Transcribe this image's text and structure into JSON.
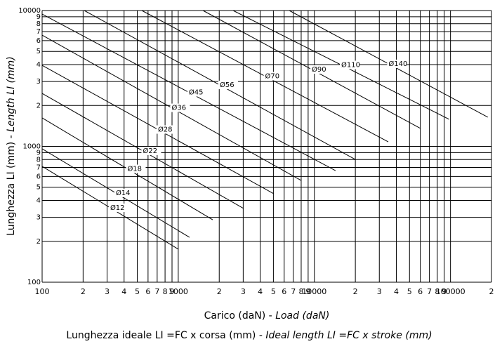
{
  "chart_data": {
    "type": "line",
    "log_x": true,
    "log_y": true,
    "grid": true,
    "x_label": "Carico (daN) - ",
    "x_label_en": "Load (daN)",
    "y_label": "Lunghezza LI (mm) - ",
    "y_label_en": "Length LI (mm)",
    "caption": "Lunghezza ideale LI =FC x corsa (mm) - ",
    "caption_en": "Ideal length LI =FC x stroke (mm)",
    "xlim": [
      100,
      200000
    ],
    "ylim": [
      100,
      10000
    ],
    "xticks": [
      100,
      {
        "value": 200,
        "label": "2"
      },
      {
        "value": 300,
        "label": "3"
      },
      {
        "value": 400,
        "label": "4"
      },
      {
        "value": 500,
        "label": "5"
      },
      {
        "value": 600,
        "label": "6"
      },
      {
        "value": 700,
        "label": "7"
      },
      {
        "value": 800,
        "label": "8"
      },
      {
        "value": 900,
        "label": "9"
      },
      1000,
      {
        "value": 2000,
        "label": "2"
      },
      {
        "value": 3000,
        "label": "3"
      },
      {
        "value": 4000,
        "label": "4"
      },
      {
        "value": 5000,
        "label": "5"
      },
      {
        "value": 6000,
        "label": "6"
      },
      {
        "value": 7000,
        "label": "7"
      },
      {
        "value": 8000,
        "label": "8"
      },
      {
        "value": 9000,
        "label": "9"
      },
      10000,
      {
        "value": 20000,
        "label": "2"
      },
      {
        "value": 30000,
        "label": "3"
      },
      {
        "value": 40000,
        "label": "4"
      },
      {
        "value": 50000,
        "label": "5"
      },
      {
        "value": 60000,
        "label": "6"
      },
      {
        "value": 70000,
        "label": "7"
      },
      {
        "value": 80000,
        "label": "8"
      },
      {
        "value": 90000,
        "label": "9"
      },
      100000,
      {
        "value": 200000,
        "label": "2"
      }
    ],
    "yticks": [
      100,
      {
        "value": 200,
        "label": "2"
      },
      {
        "value": 300,
        "label": "3"
      },
      {
        "value": 400,
        "label": "4"
      },
      {
        "value": 500,
        "label": "5"
      },
      {
        "value": 600,
        "label": "6"
      },
      {
        "value": 700,
        "label": "7"
      },
      {
        "value": 800,
        "label": "8"
      },
      {
        "value": 900,
        "label": "9"
      },
      1000,
      {
        "value": 2000,
        "label": "2"
      },
      {
        "value": 3000,
        "label": "3"
      },
      {
        "value": 4000,
        "label": "4"
      },
      {
        "value": 5000,
        "label": "5"
      },
      {
        "value": 6000,
        "label": "6"
      },
      {
        "value": 7000,
        "label": "7"
      },
      {
        "value": 8000,
        "label": "8"
      },
      {
        "value": 9000,
        "label": "9"
      },
      10000
    ],
    "series": [
      {
        "name": "Ø12",
        "color": "#000000",
        "x": [
          100,
          1000
        ],
        "values": [
          713,
          175
        ]
      },
      {
        "name": "Ø14",
        "color": "#000000",
        "x": [
          100,
          1210
        ],
        "values": [
          960,
          214
        ]
      },
      {
        "name": "Ø18",
        "color": "#000000",
        "x": [
          100,
          1790
        ],
        "values": [
          1620,
          288
        ]
      },
      {
        "name": "Ø22",
        "color": "#000000",
        "x": [
          100,
          3020
        ],
        "values": [
          2455,
          349
        ]
      },
      {
        "name": "Ø28",
        "color": "#000000",
        "x": [
          100,
          5030
        ],
        "values": [
          3950,
          448
        ]
      },
      {
        "name": "Ø36",
        "color": "#000000",
        "x": [
          100,
          8000
        ],
        "values": [
          6590,
          561
        ]
      },
      {
        "name": "Ø45",
        "color": "#000000",
        "x": [
          100,
          14300
        ],
        "values": [
          9420,
          663
        ]
      },
      {
        "name": "Ø56",
        "color": "#000000",
        "x": [
          204,
          19950
        ],
        "values": [
          10000,
          802
        ]
      },
      {
        "name": "Ø70",
        "color": "#000000",
        "x": [
          540,
          34900
        ],
        "values": [
          10000,
          1080
        ]
      },
      {
        "name": "Ø90",
        "color": "#000000",
        "x": [
          1520,
          60200
        ],
        "values": [
          10000,
          1355
        ]
      },
      {
        "name": "Ø110",
        "color": "#000000",
        "x": [
          2530,
          98000
        ],
        "values": [
          10000,
          1580
        ]
      },
      {
        "name": "Ø140",
        "color": "#000000",
        "x": [
          6540,
          188000
        ],
        "values": [
          10000,
          1640
        ]
      }
    ]
  }
}
